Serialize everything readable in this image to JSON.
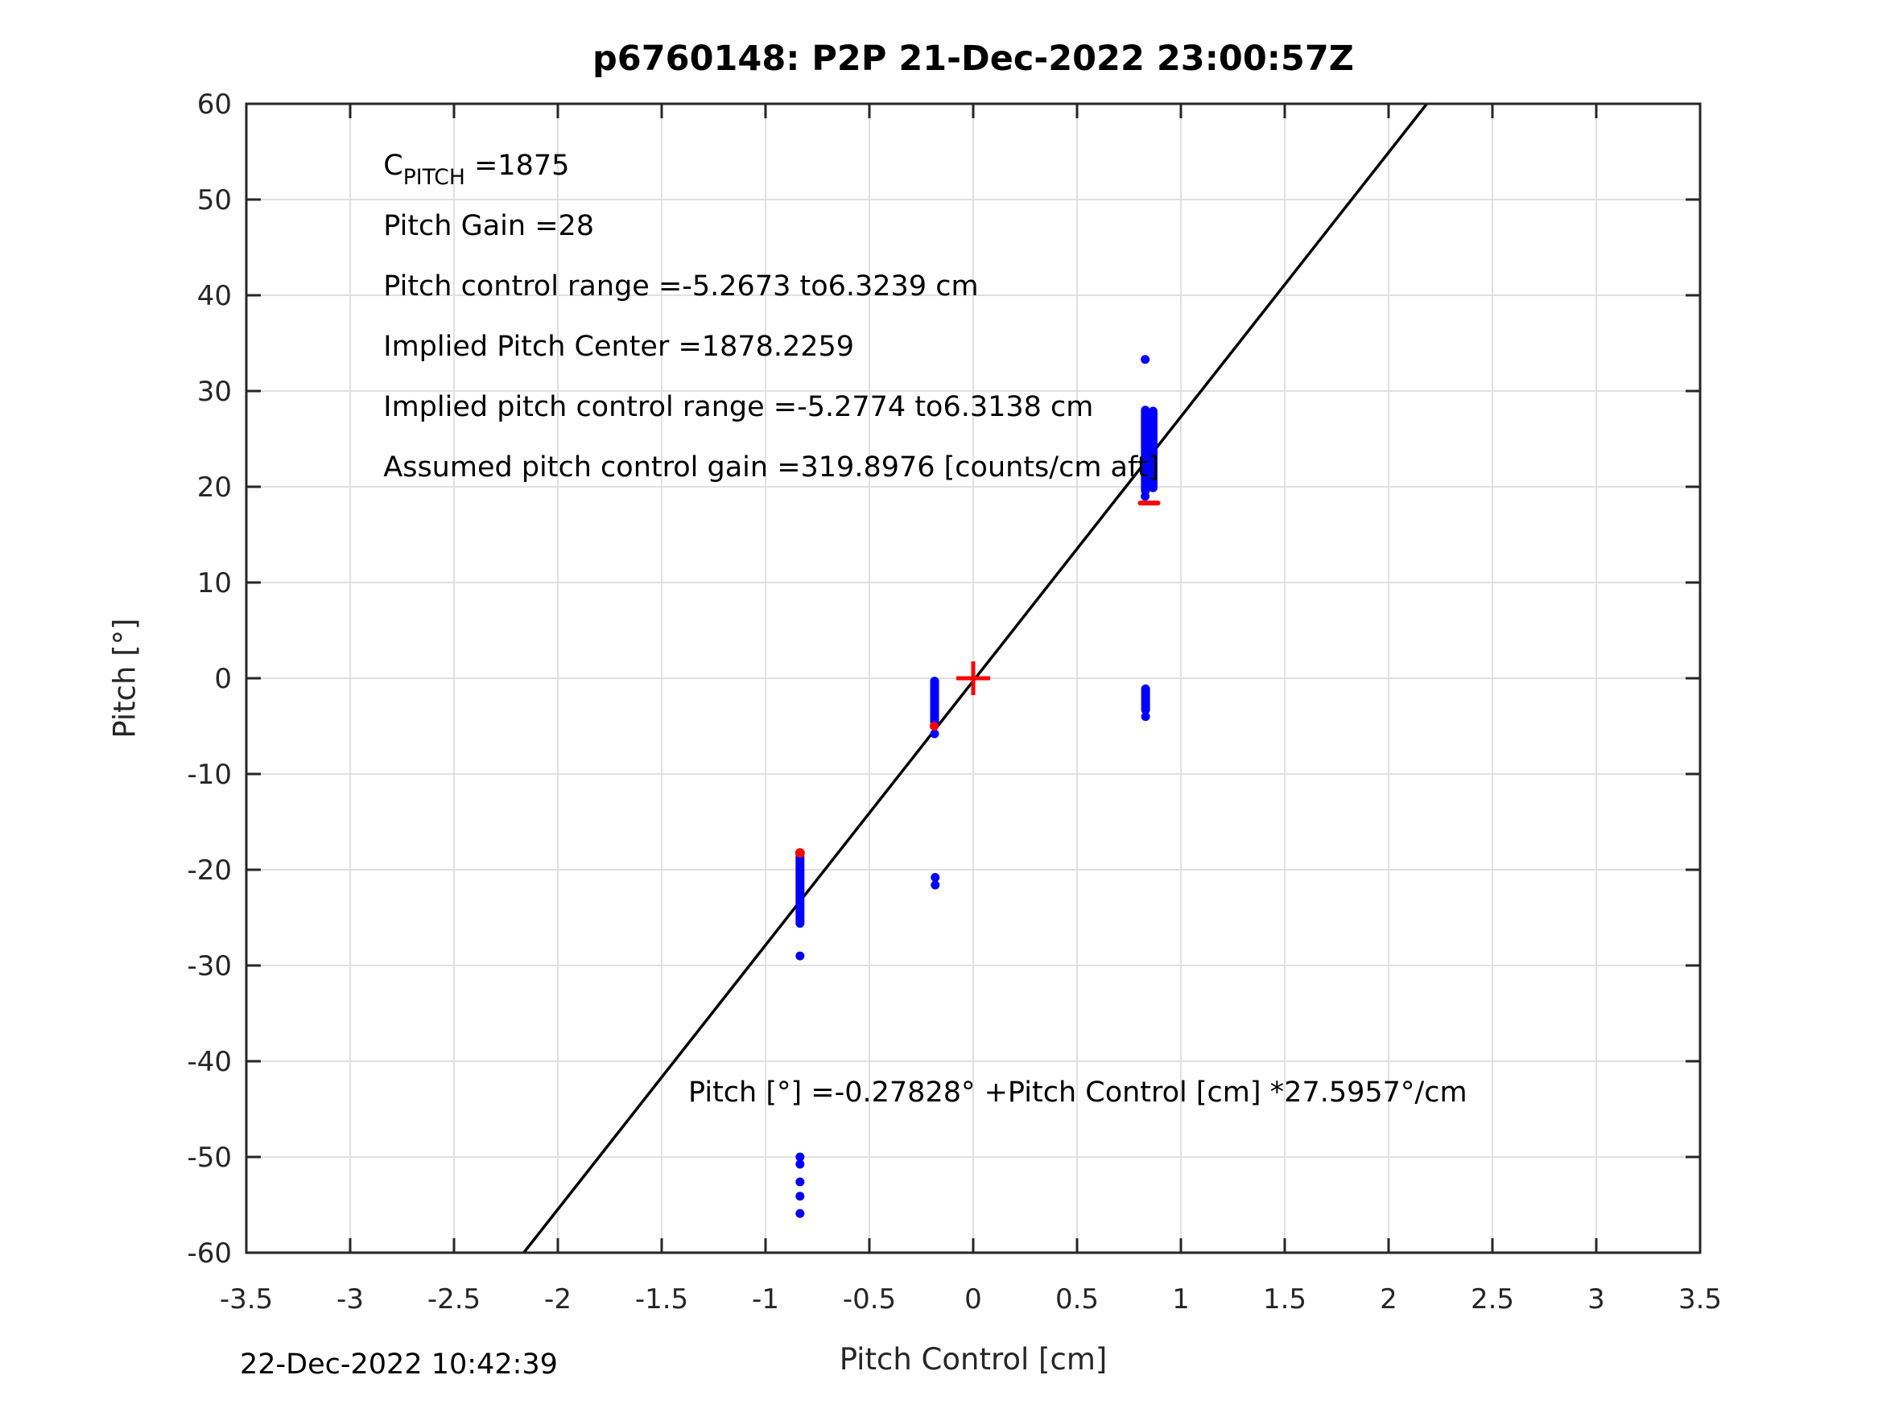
{
  "chart_data": {
    "type": "scatter",
    "title": "p6760148: P2P 21-Dec-2022 23:00:57Z",
    "xlabel": "Pitch Control [cm]",
    "ylabel": "Pitch [°]",
    "footer_timestamp": "22-Dec-2022 10:42:39",
    "xlim": [
      -3.5,
      3.5
    ],
    "ylim": [
      -60,
      60
    ],
    "grid": true,
    "xticks": {
      "values": [
        -3.5,
        -3,
        -2.5,
        -2,
        -1.5,
        -1,
        -0.5,
        0,
        0.5,
        1,
        1.5,
        2,
        2.5,
        3,
        3.5
      ],
      "labels": [
        "-3.5",
        "-3",
        "-2.5",
        "-2",
        "-1.5",
        "-1",
        "-0.5",
        "0",
        "0.5",
        "1",
        "1.5",
        "2",
        "2.5",
        "3",
        "3.5"
      ]
    },
    "yticks": {
      "values": [
        -60,
        -50,
        -40,
        -30,
        -20,
        -10,
        0,
        10,
        20,
        30,
        40,
        50,
        60
      ],
      "labels": [
        "-60",
        "-50",
        "-40",
        "-30",
        "-20",
        "-10",
        "0",
        "10",
        "20",
        "30",
        "40",
        "50",
        "60"
      ]
    },
    "colors": {
      "measurement": "#0000ff",
      "command": "#ff0000",
      "fit_line": "#000000",
      "grid": "#e0e0e0",
      "axis": "#262626",
      "tick_text": "#262626",
      "annotation_text": "#000000"
    },
    "fit_line": {
      "slope_deg_per_cm": 27.5957,
      "intercept_deg": -0.27828,
      "x_start": -2.1641,
      "x_end": 2.1843
    },
    "series": [
      {
        "name": "pitch-measurements",
        "color": "#0000ff",
        "marker": "circle",
        "marker_radius": 5.5,
        "segment_stroke": 11,
        "segments": [
          {
            "x": 0.829,
            "y1": 19.6,
            "y2": 28.0
          },
          {
            "x": 0.866,
            "y1": 19.9,
            "y2": 27.9
          },
          {
            "x": 0.83,
            "y1": -1.1,
            "y2": -3.3
          },
          {
            "x": -0.186,
            "y1": -0.3,
            "y2": -4.6
          },
          {
            "x": -0.834,
            "y1": -18.7,
            "y2": -25.6
          }
        ],
        "points": [
          {
            "x": 0.828,
            "y": 33.3
          },
          {
            "x": 0.828,
            "y": 19.0
          },
          {
            "x": 0.83,
            "y": -4.0
          },
          {
            "x": -0.186,
            "y": -5.8
          },
          {
            "x": -0.183,
            "y": -20.8
          },
          {
            "x": -0.183,
            "y": -21.6
          },
          {
            "x": -0.834,
            "y": -29.0
          },
          {
            "x": -0.834,
            "y": -50.0
          },
          {
            "x": -0.834,
            "y": -50.75
          },
          {
            "x": -0.834,
            "y": -52.6
          },
          {
            "x": -0.834,
            "y": -54.1
          },
          {
            "x": -0.834,
            "y": -55.9
          }
        ]
      },
      {
        "name": "pitch-commands",
        "color": "#ff0000",
        "markers": [
          {
            "shape": "plus",
            "x": 0,
            "y": 0,
            "half_size": 21,
            "stroke": 5
          },
          {
            "shape": "dash",
            "x": 0.847,
            "y": 18.3,
            "half_width": 11,
            "stroke": 6
          },
          {
            "shape": "circle",
            "x": -0.188,
            "y": -5.0,
            "r": 5.5
          },
          {
            "shape": "circle",
            "x": -0.834,
            "y": -18.25,
            "r": 6
          }
        ]
      }
    ],
    "annotations": {
      "info_block": {
        "x": -2.84,
        "y_start": 52.6,
        "line_step": 6.3,
        "font_size": 35,
        "lines": [
          {
            "parts": [
              {
                "t": "C"
              },
              {
                "t": "PITCH",
                "sub": true
              },
              {
                "t": " =1875"
              }
            ]
          },
          {
            "text": "Pitch Gain =28"
          },
          {
            "text": "Pitch control range =-5.2673 to6.3239 cm"
          },
          {
            "text": "Implied Pitch Center =1878.2259"
          },
          {
            "text": "Implied pitch control range =-5.2774 to6.3138 cm"
          },
          {
            "text": "Assumed pitch control gain =319.8976 [counts/cm aft]"
          }
        ]
      },
      "fit_equation": {
        "x": -1.372,
        "y": -44.2,
        "font_size": 35,
        "text": "Pitch [°] =-0.27828° +Pitch Control [cm] *27.5957°/cm"
      }
    }
  }
}
